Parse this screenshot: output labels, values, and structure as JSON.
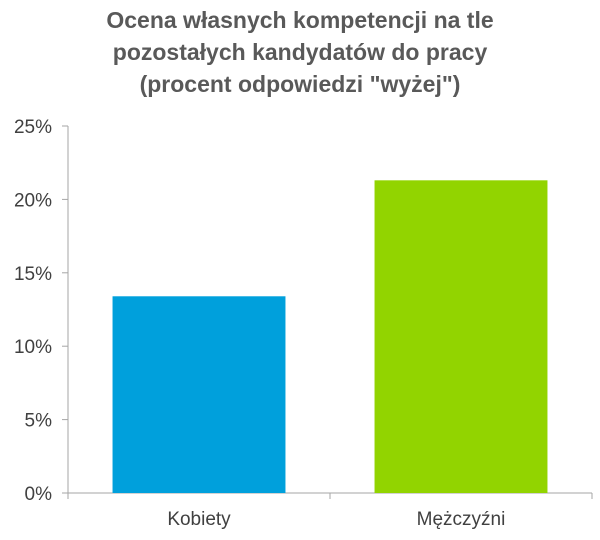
{
  "chart_data": {
    "type": "bar",
    "title_lines": [
      "Ocena własnych kompetencji na tle",
      "pozostałych kandydatów do pracy",
      "(procent odpowiedzi \"wyżej\")"
    ],
    "categories": [
      "Kobiety",
      "Mężczyźni"
    ],
    "values": [
      13.4,
      21.3
    ],
    "bar_colors": [
      "#00a0dc",
      "#92d400"
    ],
    "ylim": [
      0,
      25
    ],
    "yticks": [
      0,
      5,
      10,
      15,
      20,
      25
    ],
    "ytick_labels": [
      "0%",
      "5%",
      "10%",
      "15%",
      "20%",
      "25%"
    ],
    "xlabel": "",
    "ylabel": "",
    "grid": false,
    "legend": "none"
  }
}
